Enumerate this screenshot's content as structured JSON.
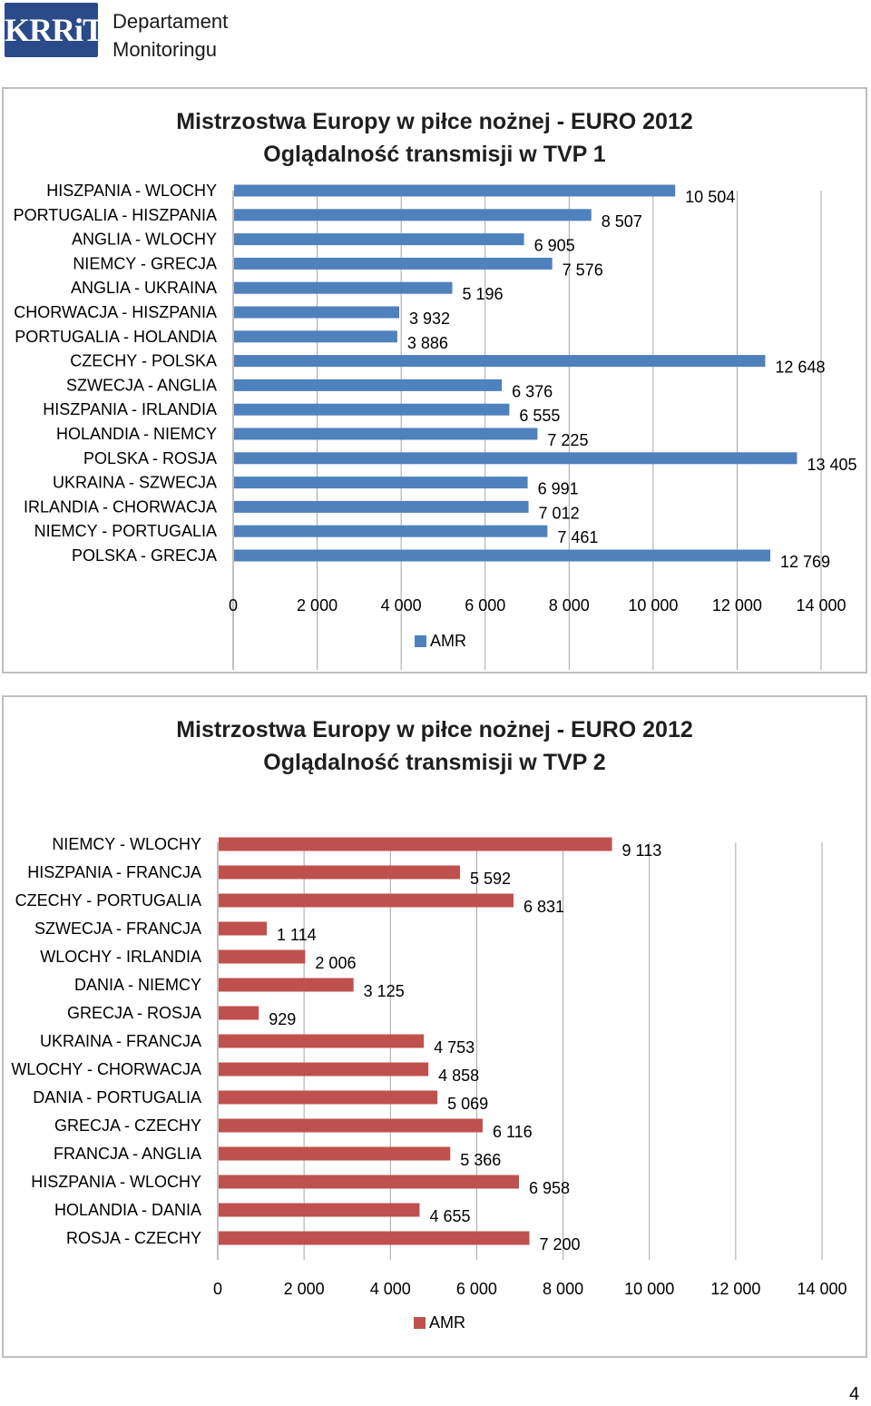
{
  "header": {
    "logo_text": "KRRiT",
    "dept_line1": "Departament",
    "dept_line2": "Monitoringu"
  },
  "page_number": "4",
  "chart_data": [
    {
      "type": "bar",
      "orientation": "horizontal",
      "title_line1": "Mistrzostwa Europy w piłce nożnej - EURO 2012",
      "title_line2": "Oglądalność transmisji  w TVP 1",
      "categories": [
        "HISZPANIA - WLOCHY",
        "PORTUGALIA - HISZPANIA",
        "ANGLIA - WLOCHY",
        "NIEMCY - GRECJA",
        "ANGLIA - UKRAINA",
        "CHORWACJA - HISZPANIA",
        "PORTUGALIA - HOLANDIA",
        "CZECHY - POLSKA",
        "SZWECJA - ANGLIA",
        "HISZPANIA - IRLANDIA",
        "HOLANDIA - NIEMCY",
        "POLSKA - ROSJA",
        "UKRAINA - SZWECJA",
        "IRLANDIA - CHORWACJA",
        "NIEMCY - PORTUGALIA",
        "POLSKA - GRECJA"
      ],
      "series": [
        {
          "name": "AMR",
          "values": [
            10504,
            8507,
            6905,
            7576,
            5196,
            3932,
            3886,
            12648,
            6376,
            6555,
            7225,
            13405,
            6991,
            7012,
            7461,
            12769
          ]
        }
      ],
      "value_labels": [
        "10 504",
        "8 507",
        "6 905",
        "7 576",
        "5 196",
        "3 932",
        "3 886",
        "12 648",
        "6 376",
        "6 555",
        "7 225",
        "13 405",
        "6 991",
        "7 012",
        "7 461",
        "12 769"
      ],
      "xlim": [
        0,
        14000
      ],
      "xticks": [
        "0",
        "2 000",
        "4 000",
        "6 000",
        "8 000",
        "10 000",
        "12 000",
        "14 000"
      ],
      "grid": "vertical",
      "legend": "bottom",
      "color": "#4f81bd"
    },
    {
      "type": "bar",
      "orientation": "horizontal",
      "title_line1": "Mistrzostwa Europy w piłce nożnej - EURO 2012",
      "title_line2": "Oglądalność transmisji w TVP 2",
      "categories": [
        "NIEMCY - WLOCHY",
        "HISZPANIA - FRANCJA",
        "CZECHY - PORTUGALIA",
        "SZWECJA - FRANCJA",
        "WLOCHY - IRLANDIA",
        "DANIA - NIEMCY",
        "GRECJA - ROSJA",
        "UKRAINA - FRANCJA",
        "WLOCHY - CHORWACJA",
        "DANIA - PORTUGALIA",
        "GRECJA - CZECHY",
        "FRANCJA - ANGLIA",
        "HISZPANIA - WLOCHY",
        "HOLANDIA - DANIA",
        "ROSJA - CZECHY"
      ],
      "series": [
        {
          "name": "AMR",
          "values": [
            9113,
            5592,
            6831,
            1114,
            2006,
            3125,
            929,
            4753,
            4858,
            5069,
            6116,
            5366,
            6958,
            4655,
            7200
          ]
        }
      ],
      "value_labels": [
        "9 113",
        "5 592",
        "6 831",
        "1 114",
        "2 006",
        "3 125",
        "929",
        "4 753",
        "4 858",
        "5 069",
        "6 116",
        "5 366",
        "6 958",
        "4 655",
        "7 200"
      ],
      "xlim": [
        0,
        14000
      ],
      "xticks": [
        "0",
        "2 000",
        "4 000",
        "6 000",
        "8 000",
        "10 000",
        "12 000",
        "14 000"
      ],
      "grid": "vertical",
      "legend": "bottom",
      "color": "#c0504d"
    }
  ]
}
